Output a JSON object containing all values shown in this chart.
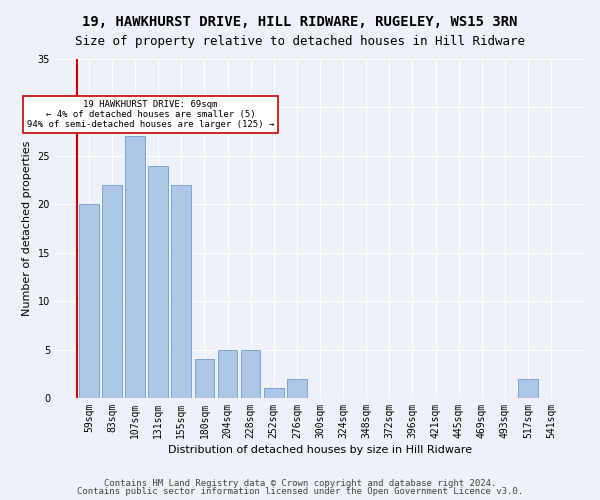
{
  "title1": "19, HAWKHURST DRIVE, HILL RIDWARE, RUGELEY, WS15 3RN",
  "title2": "Size of property relative to detached houses in Hill Ridware",
  "xlabel": "Distribution of detached houses by size in Hill Ridware",
  "ylabel": "Number of detached properties",
  "categories": [
    "59sqm",
    "83sqm",
    "107sqm",
    "131sqm",
    "155sqm",
    "180sqm",
    "204sqm",
    "228sqm",
    "252sqm",
    "276sqm",
    "300sqm",
    "324sqm",
    "348sqm",
    "372sqm",
    "396sqm",
    "421sqm",
    "445sqm",
    "469sqm",
    "493sqm",
    "517sqm",
    "541sqm"
  ],
  "values": [
    20,
    22,
    27,
    24,
    22,
    4,
    5,
    5,
    1,
    2,
    0,
    0,
    0,
    0,
    0,
    0,
    0,
    0,
    0,
    2,
    0
  ],
  "bar_color": "#aec6e8",
  "bar_edge_color": "#5a8fc2",
  "highlight_bar_index": 0,
  "highlight_color": "#aec6e8",
  "vline_x": 0,
  "vline_color": "#cc0000",
  "annotation_text": "19 HAWKHURST DRIVE: 69sqm\n← 4% of detached houses are smaller (5)\n94% of semi-detached houses are larger (125) →",
  "annotation_box_color": "#ffffff",
  "annotation_box_edge": "#cc0000",
  "ylim": [
    0,
    35
  ],
  "yticks": [
    0,
    5,
    10,
    15,
    20,
    25,
    30,
    35
  ],
  "footer1": "Contains HM Land Registry data © Crown copyright and database right 2024.",
  "footer2": "Contains public sector information licensed under the Open Government Licence v3.0.",
  "bg_color": "#eef2f8",
  "plot_bg_color": "#eef2f8",
  "grid_color": "#ffffff",
  "title_fontsize": 10,
  "subtitle_fontsize": 9,
  "axis_label_fontsize": 8,
  "tick_fontsize": 7,
  "footer_fontsize": 6.5
}
